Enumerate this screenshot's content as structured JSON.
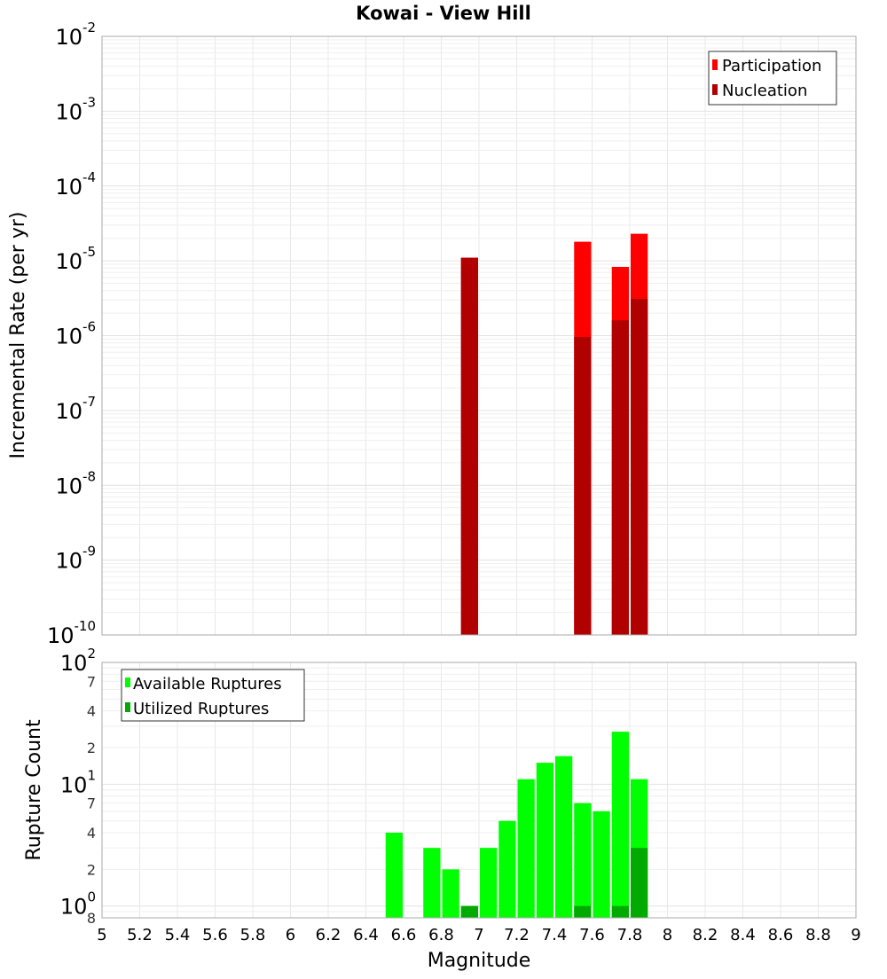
{
  "chart_data": [
    {
      "type": "bar",
      "title": "Kowai - View Hill",
      "xlabel": "Magnitude",
      "ylabel": "Incremental Rate (per yr)",
      "yscale": "log",
      "xlim": [
        5,
        9
      ],
      "ylim": [
        1e-10,
        0.01
      ],
      "grid": true,
      "legend_position": "top-right",
      "bin_width": 0.1,
      "x_ticks": [
        "5",
        "5.2",
        "5.4",
        "5.6",
        "5.8",
        "6",
        "6.2",
        "6.4",
        "6.6",
        "6.8",
        "7",
        "7.2",
        "7.4",
        "7.6",
        "7.8",
        "8",
        "8.2",
        "8.4",
        "8.6",
        "8.8",
        "9"
      ],
      "y_ticks": [
        {
          "base": "10",
          "exp": "-2",
          "value": 0.01
        },
        {
          "base": "10",
          "exp": "-3",
          "value": 0.001
        },
        {
          "base": "10",
          "exp": "-4",
          "value": 0.0001
        },
        {
          "base": "10",
          "exp": "-5",
          "value": 1e-05
        },
        {
          "base": "10",
          "exp": "-6",
          "value": 1e-06
        },
        {
          "base": "10",
          "exp": "-7",
          "value": 1e-07
        },
        {
          "base": "10",
          "exp": "-8",
          "value": 1e-08
        },
        {
          "base": "10",
          "exp": "-9",
          "value": 1e-09
        },
        {
          "base": "10",
          "exp": "-10",
          "value": 1e-10
        }
      ],
      "series": [
        {
          "name": "Participation",
          "color": "#ff0000",
          "x": [
            6.95,
            7.55,
            7.75,
            7.85
          ],
          "values": [
            1.1e-05,
            1.8e-05,
            8.3e-06,
            2.3e-05
          ]
        },
        {
          "name": "Nucleation",
          "color": "#b00000",
          "x": [
            6.95,
            7.55,
            7.75,
            7.85
          ],
          "values": [
            1.1e-05,
            9.6e-07,
            1.6e-06,
            3.1e-06
          ]
        }
      ]
    },
    {
      "type": "bar",
      "title": "",
      "xlabel": "Magnitude",
      "ylabel": "Rupture Count",
      "yscale": "log",
      "xlim": [
        5,
        9
      ],
      "ylim": [
        0.8,
        100
      ],
      "grid": true,
      "legend_position": "top-left",
      "bin_width": 0.1,
      "x_ticks": [
        "5",
        "5.2",
        "5.4",
        "5.6",
        "5.8",
        "6",
        "6.2",
        "6.4",
        "6.6",
        "6.8",
        "7",
        "7.2",
        "7.4",
        "7.6",
        "7.8",
        "8",
        "8.2",
        "8.4",
        "8.6",
        "8.8",
        "9"
      ],
      "y_ticks_major": [
        {
          "base": "10",
          "exp": "2",
          "value": 100
        },
        {
          "base": "10",
          "exp": "1",
          "value": 10
        },
        {
          "base": "10",
          "exp": "0",
          "value": 1
        }
      ],
      "y_ticks_minor": [
        {
          "label": "7",
          "value": 70
        },
        {
          "label": "4",
          "value": 40
        },
        {
          "label": "2",
          "value": 20
        },
        {
          "label": "7",
          "value": 7
        },
        {
          "label": "4",
          "value": 4
        },
        {
          "label": "2",
          "value": 2
        },
        {
          "label": "8",
          "value": 0.8
        }
      ],
      "series": [
        {
          "name": "Available Ruptures",
          "color": "#00ff00",
          "x": [
            6.55,
            6.75,
            6.85,
            6.95,
            7.05,
            7.15,
            7.25,
            7.35,
            7.45,
            7.55,
            7.65,
            7.75,
            7.85
          ],
          "values": [
            4,
            3,
            2,
            1,
            3,
            5,
            11,
            15,
            17,
            7,
            6,
            27,
            11
          ]
        },
        {
          "name": "Utilized Ruptures",
          "color": "#00aa00",
          "x": [
            6.95,
            7.55,
            7.75,
            7.85
          ],
          "values": [
            1,
            1,
            1,
            3
          ]
        }
      ]
    }
  ]
}
